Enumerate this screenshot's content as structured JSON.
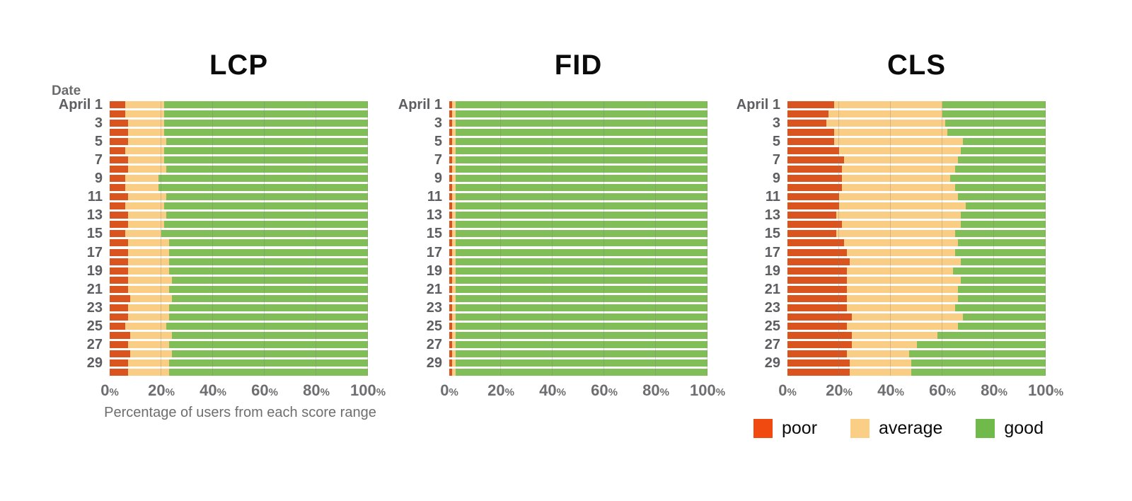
{
  "page": {
    "background": "#ffffff"
  },
  "bar_colors": {
    "poor": "#D9541F",
    "average": "#FACD84",
    "good": "#82BE58"
  },
  "legend": {
    "items": [
      {
        "label": "poor",
        "color": "#F04A11"
      },
      {
        "label": "average",
        "color": "#FBCE85"
      },
      {
        "label": "good",
        "color": "#6FBA4A"
      }
    ]
  },
  "chart_data": [
    {
      "type": "bar",
      "orientation": "horizontal",
      "stacked": true,
      "title": "LCP",
      "y_axis_label": "Date",
      "x_axis_label": "Percentage of users from each score range",
      "x_ticks": [
        "0%",
        "20%",
        "40%",
        "60%",
        "80%",
        "100%"
      ],
      "xlim": [
        0,
        100
      ],
      "grid": true,
      "categories": [
        "April 1",
        "",
        "3",
        "",
        "5",
        "",
        "7",
        "",
        "9",
        "",
        "11",
        "",
        "13",
        "",
        "15",
        "",
        "17",
        "",
        "19",
        "",
        "21",
        "",
        "23",
        "",
        "25",
        "",
        "27",
        "",
        "29",
        ""
      ],
      "series": [
        {
          "name": "poor",
          "values": [
            6,
            6,
            7,
            7,
            7,
            6,
            7,
            7,
            6,
            6,
            7,
            6,
            7,
            7,
            6,
            7,
            7,
            7,
            7,
            7,
            7,
            8,
            7,
            7,
            6,
            8,
            7,
            8,
            7,
            7
          ]
        },
        {
          "name": "average",
          "values": [
            15,
            15,
            14,
            14,
            15,
            15,
            14,
            15,
            13,
            13,
            15,
            15,
            15,
            14,
            14,
            16,
            16,
            16,
            16,
            17,
            16,
            16,
            16,
            16,
            16,
            16,
            16,
            16,
            16,
            16
          ]
        },
        {
          "name": "good",
          "values": [
            79,
            79,
            79,
            79,
            78,
            79,
            79,
            78,
            81,
            81,
            78,
            79,
            78,
            79,
            80,
            77,
            77,
            77,
            77,
            76,
            77,
            76,
            77,
            77,
            78,
            76,
            77,
            76,
            77,
            77
          ]
        }
      ]
    },
    {
      "type": "bar",
      "orientation": "horizontal",
      "stacked": true,
      "title": "FID",
      "x_ticks": [
        "0%",
        "20%",
        "40%",
        "60%",
        "80%",
        "100%"
      ],
      "xlim": [
        0,
        100
      ],
      "grid": true,
      "categories": [
        "April 1",
        "",
        "3",
        "",
        "5",
        "",
        "7",
        "",
        "9",
        "",
        "11",
        "",
        "13",
        "",
        "15",
        "",
        "17",
        "",
        "19",
        "",
        "21",
        "",
        "23",
        "",
        "25",
        "",
        "27",
        "",
        "29",
        ""
      ],
      "series": [
        {
          "name": "poor",
          "values": [
            1,
            1,
            1,
            1,
            1,
            1,
            1,
            1,
            1,
            1,
            1,
            1,
            1,
            1,
            1,
            1,
            1,
            1,
            1,
            1,
            1,
            1,
            1,
            1,
            1,
            1,
            1,
            1,
            1,
            1
          ]
        },
        {
          "name": "average",
          "values": [
            1.5,
            1.5,
            1.5,
            1.5,
            1.5,
            1.5,
            1.5,
            1.5,
            1.5,
            1.5,
            1.5,
            1.5,
            1.5,
            1.5,
            1.5,
            1.5,
            1.5,
            1.5,
            1.5,
            1.5,
            1.5,
            1.5,
            1.5,
            1.5,
            1.5,
            1.5,
            1.5,
            1.5,
            1.5,
            1.5
          ]
        },
        {
          "name": "good",
          "values": [
            97.5,
            97.5,
            97.5,
            97.5,
            97.5,
            97.5,
            97.5,
            97.5,
            97.5,
            97.5,
            97.5,
            97.5,
            97.5,
            97.5,
            97.5,
            97.5,
            97.5,
            97.5,
            97.5,
            97.5,
            97.5,
            97.5,
            97.5,
            97.5,
            97.5,
            97.5,
            97.5,
            97.5,
            97.5,
            97.5
          ]
        }
      ]
    },
    {
      "type": "bar",
      "orientation": "horizontal",
      "stacked": true,
      "title": "CLS",
      "x_ticks": [
        "0%",
        "20%",
        "40%",
        "60%",
        "80%",
        "100%"
      ],
      "xlim": [
        0,
        100
      ],
      "grid": true,
      "legend_position": "bottom",
      "categories": [
        "April 1",
        "",
        "3",
        "",
        "5",
        "",
        "7",
        "",
        "9",
        "",
        "11",
        "",
        "13",
        "",
        "15",
        "",
        "17",
        "",
        "19",
        "",
        "21",
        "",
        "23",
        "",
        "25",
        "",
        "27",
        "",
        "29",
        ""
      ],
      "series": [
        {
          "name": "poor",
          "values": [
            18,
            16,
            15,
            18,
            18,
            20,
            22,
            21,
            21,
            21,
            20,
            20,
            19,
            21,
            19,
            22,
            23,
            24,
            23,
            23,
            23,
            23,
            23,
            25,
            23,
            25,
            25,
            23,
            24,
            24
          ]
        },
        {
          "name": "average",
          "values": [
            42,
            44,
            46,
            44,
            50,
            47,
            44,
            44,
            42,
            44,
            46,
            49,
            48,
            46,
            46,
            44,
            42,
            43,
            41,
            44,
            43,
            43,
            42,
            43,
            43,
            33,
            25,
            24,
            24,
            24
          ]
        },
        {
          "name": "good",
          "values": [
            40,
            40,
            39,
            38,
            32,
            33,
            34,
            35,
            37,
            35,
            34,
            31,
            33,
            33,
            35,
            34,
            35,
            33,
            36,
            33,
            34,
            34,
            35,
            32,
            34,
            42,
            50,
            53,
            52,
            52
          ]
        }
      ]
    }
  ]
}
